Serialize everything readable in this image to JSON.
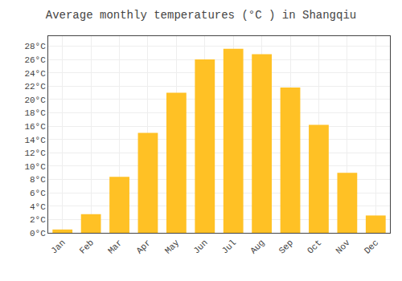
{
  "chart_data": {
    "type": "bar",
    "title": "Average monthly temperatures (°C ) in Shangqiu",
    "categories": [
      "Jan",
      "Feb",
      "Mar",
      "Apr",
      "May",
      "Jun",
      "Jul",
      "Aug",
      "Sep",
      "Oct",
      "Nov",
      "Dec"
    ],
    "values": [
      0.5,
      2.8,
      8.4,
      15.0,
      21.0,
      26.0,
      27.6,
      26.8,
      21.8,
      16.2,
      9.0,
      2.6
    ],
    "color": "#FFC125",
    "ylim": [
      0,
      29.5
    ],
    "yticks": [
      {
        "value": 0,
        "label": "0°C"
      },
      {
        "value": 2,
        "label": "2°C"
      },
      {
        "value": 4,
        "label": "4°C"
      },
      {
        "value": 6,
        "label": "6°C"
      },
      {
        "value": 8,
        "label": "8°C"
      },
      {
        "value": 10,
        "label": "10°C"
      },
      {
        "value": 12,
        "label": "12°C"
      },
      {
        "value": 14,
        "label": "14°C"
      },
      {
        "value": 16,
        "label": "16°C"
      },
      {
        "value": 18,
        "label": "18°C"
      },
      {
        "value": 20,
        "label": "20°C"
      },
      {
        "value": 22,
        "label": "22°C"
      },
      {
        "value": 24,
        "label": "24°C"
      },
      {
        "value": 26,
        "label": "26°C"
      },
      {
        "value": 28,
        "label": "28°C"
      }
    ],
    "grid": true
  }
}
